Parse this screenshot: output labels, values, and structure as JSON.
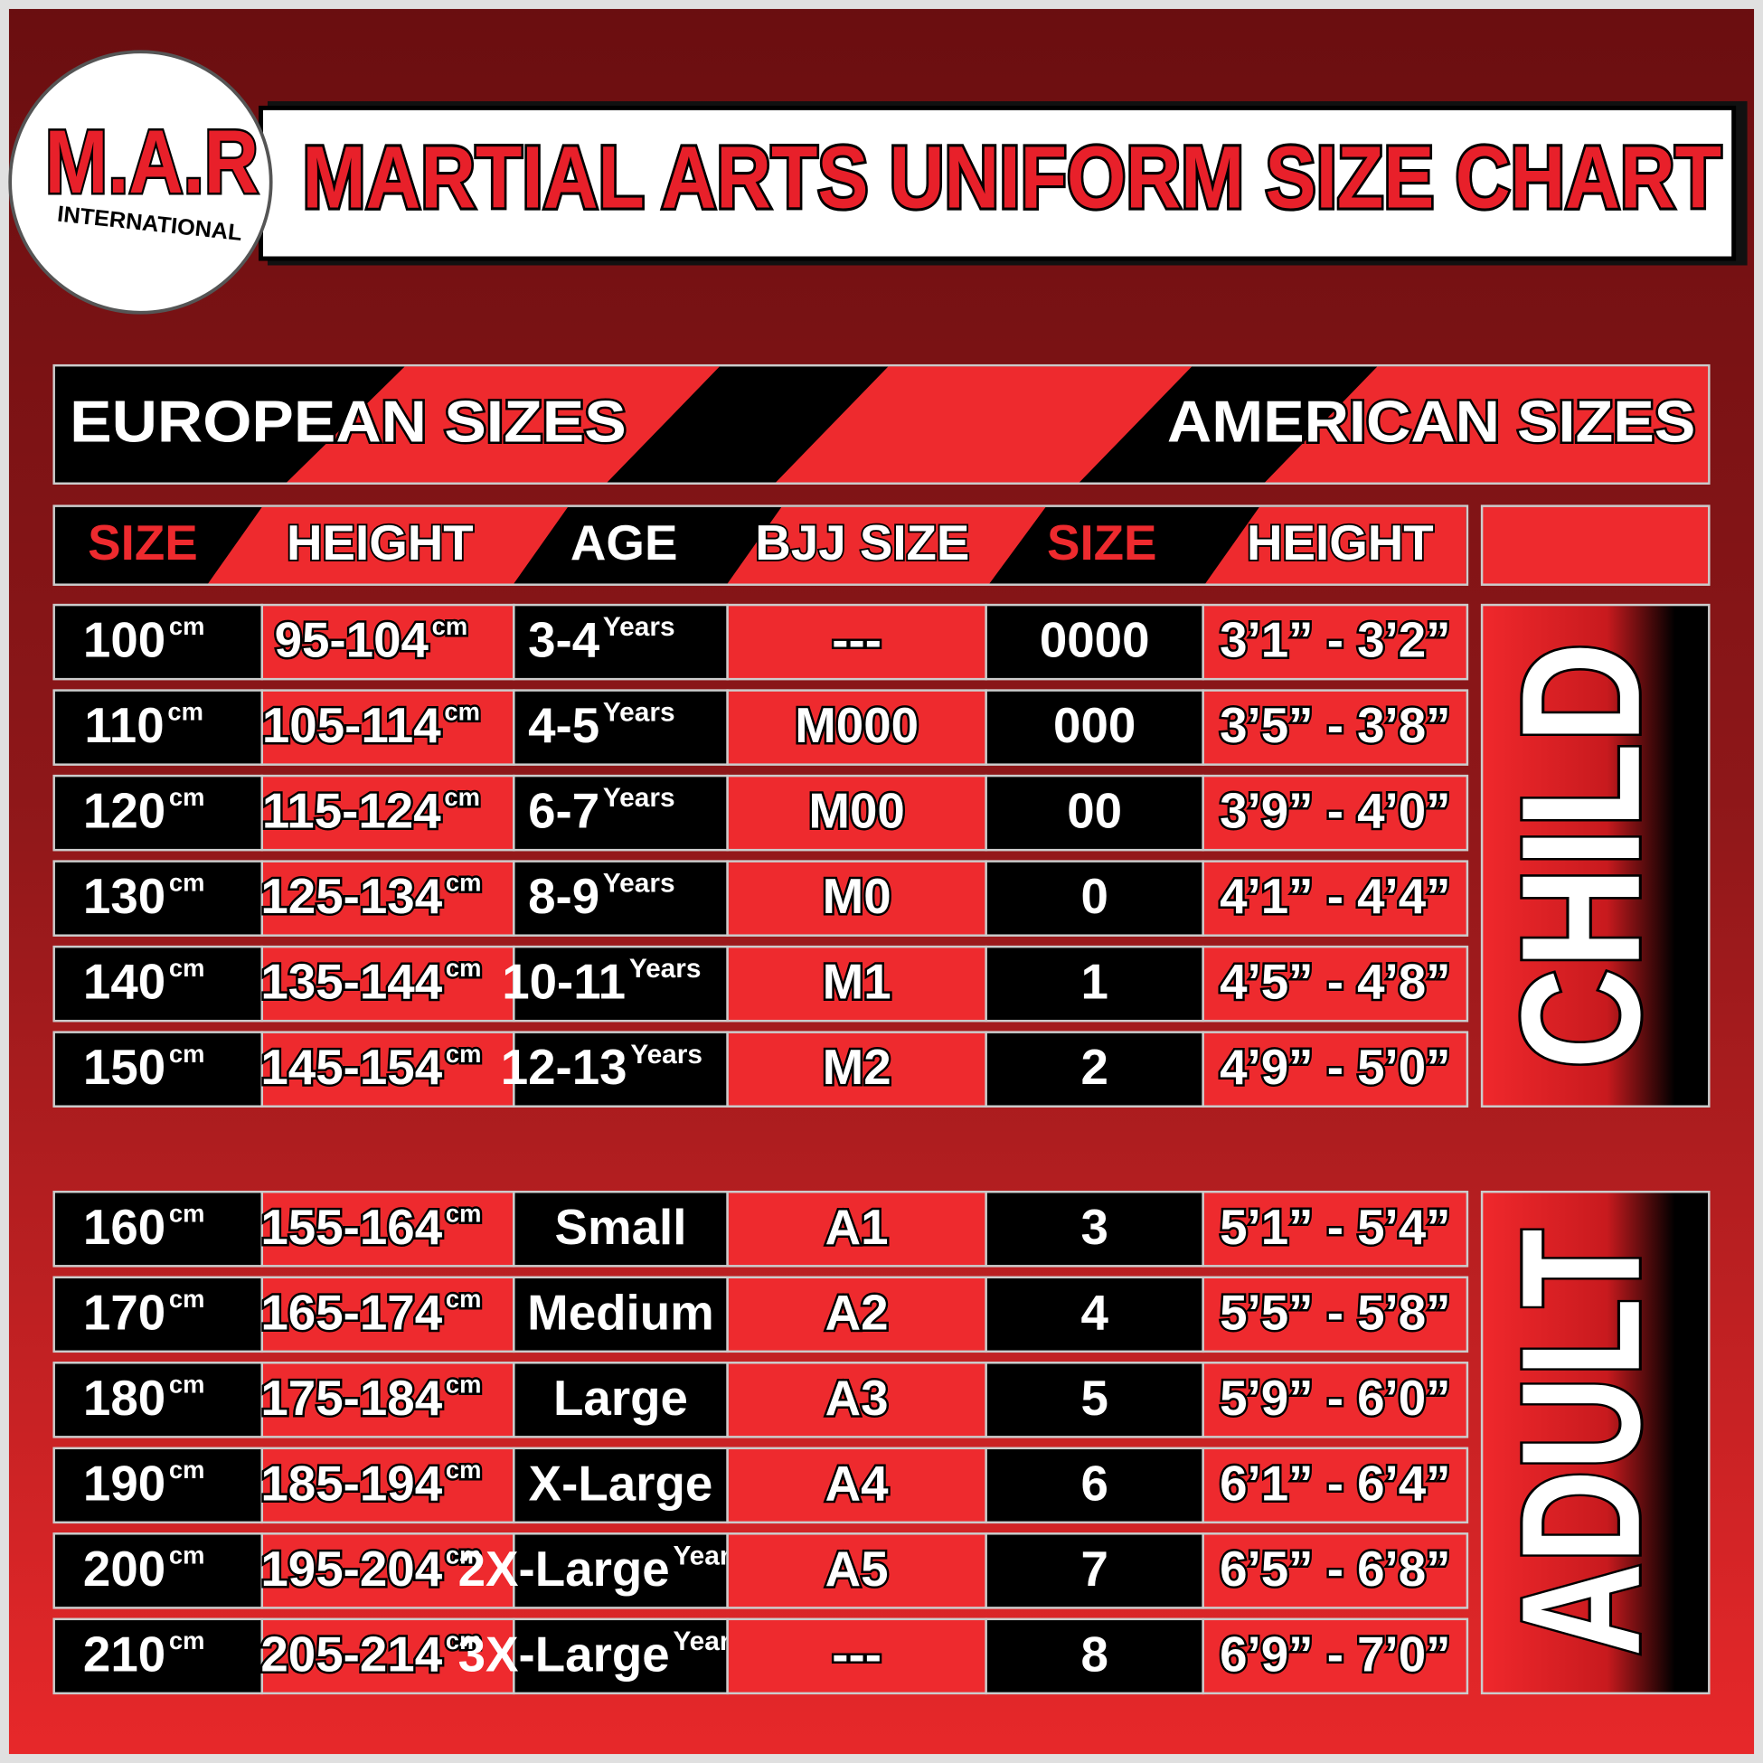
{
  "logo": {
    "brand": "M.A.R",
    "subtitle": "INTERNATIONAL"
  },
  "title": "MARTIAL ARTS UNIFORM SIZE CHART",
  "sections": {
    "european": "EUROPEAN SIZES",
    "american": "AMERICAN SIZES"
  },
  "columns": [
    "SIZE",
    "HEIGHT",
    "AGE",
    "BJJ SIZE",
    "SIZE",
    "HEIGHT"
  ],
  "units": {
    "cm": "cm",
    "years": "Years"
  },
  "groups": [
    {
      "label": "CHILD",
      "rows": [
        [
          "100",
          "95-104",
          "3-4",
          "---",
          "0000",
          "3’1” - 3’2”"
        ],
        [
          "110",
          "105-114",
          "4-5",
          "M000",
          "000",
          "3’5” - 3’8”"
        ],
        [
          "120",
          "115-124",
          "6-7",
          "M00",
          "00",
          "3’9” - 4’0”"
        ],
        [
          "130",
          "125-134",
          "8-9",
          "M0",
          "0",
          "4’1” - 4’4”"
        ],
        [
          "140",
          "135-144",
          "10-11",
          "M1",
          "1",
          "4’5” - 4’8”"
        ],
        [
          "150",
          "145-154",
          "12-13",
          "M2",
          "2",
          "4’9” - 5’0”"
        ]
      ]
    },
    {
      "label": "ADULT",
      "rows": [
        [
          "160",
          "155-164",
          "Small",
          "A1",
          "3",
          "5’1” - 5’4”"
        ],
        [
          "170",
          "165-174",
          "Medium",
          "A2",
          "4",
          "5’5” - 5’8”"
        ],
        [
          "180",
          "175-184",
          "Large",
          "A3",
          "5",
          "5’9” - 6’0”"
        ],
        [
          "190",
          "185-194",
          "X-Large",
          "A4",
          "6",
          "6’1” - 6’4”"
        ],
        [
          "200",
          "195-204",
          "2X-Large",
          "A5",
          "7",
          "6’5” - 6’8”"
        ],
        [
          "210",
          "205-214",
          "3X-Large",
          "---",
          "8",
          "6’9” - 7’0”"
        ]
      ]
    }
  ]
}
